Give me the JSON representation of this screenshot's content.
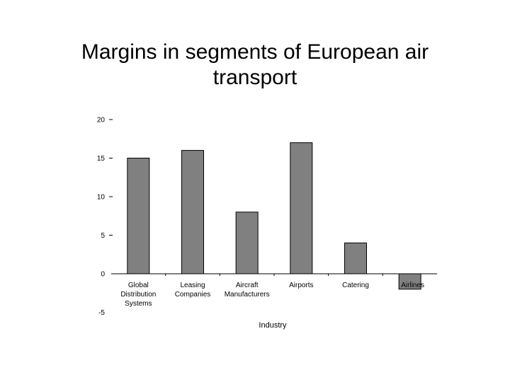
{
  "slide": {
    "title": "Margins in segments of European air\ntransport"
  },
  "chart_data": {
    "type": "bar",
    "title": "Margins in segments of European air transport",
    "xlabel": "Industry",
    "ylabel": "",
    "categories": [
      "Global Distribution Systems",
      "Leasing Companies",
      "Aircraft Manufacturers",
      "Airports",
      "Catering",
      "Airlines"
    ],
    "category_lines": [
      [
        "Global",
        "Distribution",
        "Systems"
      ],
      [
        "Leasing",
        "Companies"
      ],
      [
        "Aircraft",
        "Manufacturers"
      ],
      [
        "Airports"
      ],
      [
        "Catering"
      ],
      [
        "Airlines"
      ]
    ],
    "values": [
      15,
      16,
      8,
      17,
      4,
      -2
    ],
    "ylim": [
      -5,
      20
    ],
    "yticks": [
      20,
      15,
      10,
      5,
      0,
      -5
    ],
    "grid": false,
    "legend": "none",
    "bar_color": "#808080",
    "border_color": "#000000"
  }
}
